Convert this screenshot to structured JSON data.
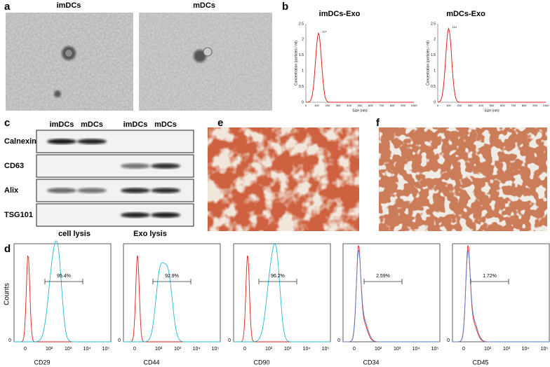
{
  "panel_a": {
    "label": "a",
    "images": [
      {
        "title": "imDCs"
      },
      {
        "title": "mDCs"
      }
    ]
  },
  "panel_b": {
    "label": "b",
    "y_label": "Concentration (particles / ml)",
    "x_label": "Size (nm)",
    "yticks": [
      "0",
      "0.5",
      "1",
      "1.5",
      "2",
      "2.5"
    ],
    "xticks": [
      "0",
      "100",
      "200",
      "300",
      "400",
      "500",
      "600",
      "700",
      "800",
      "900",
      "1000"
    ],
    "plots": [
      {
        "title": "imDCs-Exo",
        "peak_label": "117"
      },
      {
        "title": "mDCs-Exo",
        "peak_label": "101"
      }
    ]
  },
  "panel_c": {
    "label": "c",
    "lanes": [
      "imDCs",
      "mDCs",
      "imDCs",
      "mDCs"
    ],
    "rows": [
      "Calnexin",
      "CD63",
      "Alix",
      "TSG101"
    ],
    "groups": [
      "cell lysis",
      "Exo lysis"
    ]
  },
  "panel_d": {
    "label": "d",
    "y_label": "Counts",
    "y_tick": "0",
    "xticks": [
      "0",
      "10²",
      "10³",
      "10⁴",
      "10⁵"
    ],
    "histograms": [
      {
        "marker": "CD29",
        "gate": "95.4%"
      },
      {
        "marker": "CD44",
        "gate": "92.9%"
      },
      {
        "marker": "CD90",
        "gate": "96.2%"
      },
      {
        "marker": "CD34",
        "gate": "2.59%"
      },
      {
        "marker": "CD45",
        "gate": "1.72%"
      }
    ]
  },
  "panel_e": {
    "label": "e"
  },
  "panel_f": {
    "label": "f"
  }
}
